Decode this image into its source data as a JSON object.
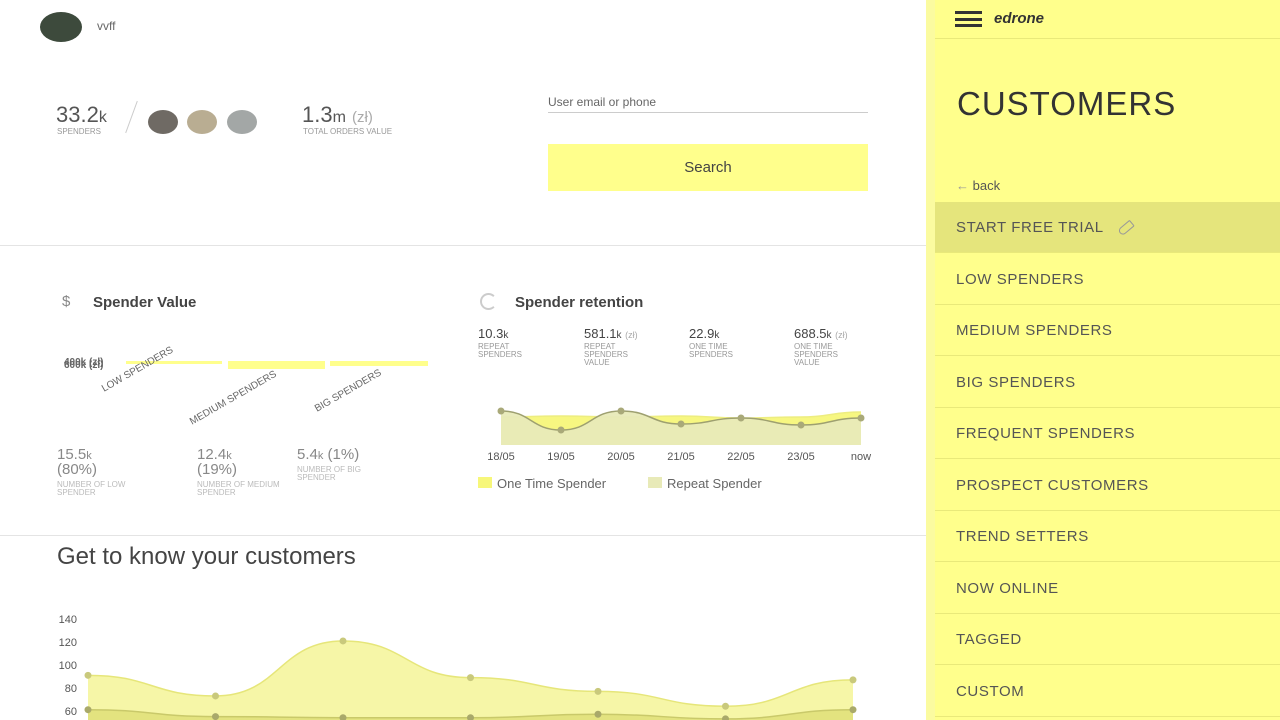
{
  "header": {
    "user_name": "vvff"
  },
  "summary": {
    "spenders": {
      "value": "33.2",
      "unit": "k",
      "label": "SPENDERS"
    },
    "orders": {
      "value": "1.3",
      "unit": "m",
      "currency": "(zł)",
      "label": "TOTAL ORDERS VALUE"
    }
  },
  "search": {
    "placeholder": "User email or phone",
    "button": "Search"
  },
  "spender_value": {
    "title": "Spender Value",
    "icon": "$",
    "axis_labels": [
      "400k (zł)",
      "600k (zł)"
    ],
    "categories": [
      "LOW SPENDERS",
      "MEDIUM SPENDERS",
      "BIG SPENDERS"
    ],
    "groups": [
      {
        "value": "15.5",
        "unit": "k",
        "share": "(80%)",
        "label": "NUMBER OF LOW SPENDER"
      },
      {
        "value": "12.4",
        "unit": "k",
        "share": "(19%)",
        "label": "NUMBER OF MEDIUM SPENDER"
      },
      {
        "value": "5.4",
        "unit": "k",
        "share": "(1%)",
        "label": "NUMBER OF BIG SPENDER"
      }
    ]
  },
  "spender_retention": {
    "title": "Spender retention",
    "stats": [
      {
        "value": "10.3",
        "unit": "k",
        "label": "REPEAT SPENDERS"
      },
      {
        "value": "581.1",
        "unit": "k",
        "currency": "(zł)",
        "label": "REPEAT SPENDERS VALUE"
      },
      {
        "value": "22.9",
        "unit": "k",
        "label": "ONE TIME SPENDERS"
      },
      {
        "value": "688.5",
        "unit": "k",
        "currency": "(zł)",
        "label": "ONE TIME SPENDERS VALUE"
      }
    ],
    "chart": {
      "type": "area",
      "categories": [
        "18/05",
        "19/05",
        "20/05",
        "21/05",
        "22/05",
        "23/05",
        "now"
      ],
      "ylim": [
        0,
        40
      ],
      "series": [
        {
          "name": "One Time Spender",
          "color": "#f7f77a",
          "values": [
            28,
            29,
            28,
            29,
            27,
            28,
            33
          ]
        },
        {
          "name": "Repeat Spender",
          "color": "#e8eab8",
          "values": [
            34,
            15,
            34,
            21,
            27,
            20,
            27
          ]
        }
      ]
    }
  },
  "customers": {
    "title": "Get to know your customers",
    "chart": {
      "type": "area",
      "ylim": [
        52,
        148
      ],
      "yticks": [
        60,
        80,
        100,
        120,
        140
      ],
      "series": [
        {
          "color": "#f6f6a2",
          "values": [
            91,
            73,
            121,
            89,
            77,
            64,
            87
          ]
        },
        {
          "color": "#e2e27c",
          "values": [
            61,
            55,
            54,
            54,
            57,
            53,
            61
          ]
        }
      ]
    }
  },
  "sidebar": {
    "brand": "edrone",
    "title": "CUSTOMERS",
    "back": "back",
    "menu": [
      "START FREE TRIAL",
      "LOW SPENDERS",
      "MEDIUM SPENDERS",
      "BIG SPENDERS",
      "FREQUENT SPENDERS",
      "PROSPECT CUSTOMERS",
      "TREND SETTERS",
      "NOW ONLINE",
      "TAGGED",
      "CUSTOM"
    ]
  }
}
